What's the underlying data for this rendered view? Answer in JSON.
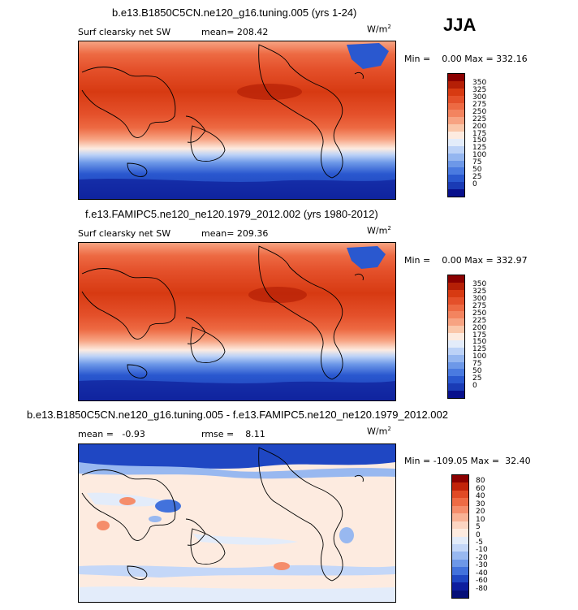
{
  "season": "JJA",
  "units": "W/m",
  "units_exp": "2",
  "panels": [
    {
      "title": "b.e13.B1850C5CN.ne120_g16.tuning.005 (yrs 1-24)",
      "variable": "Surf clearsky net SW",
      "mean_label": "mean= 208.42",
      "minmax_label": "Min =    0.00 Max = 332.16",
      "colorbar": {
        "labels": [
          "350",
          "325",
          "300",
          "275",
          "250",
          "225",
          "200",
          "175",
          "150",
          "125",
          "100",
          "75",
          "50",
          "25",
          "0"
        ],
        "colors": [
          "#8b0000",
          "#b51f06",
          "#d73a12",
          "#e4502a",
          "#ed6a43",
          "#f3845f",
          "#f7a382",
          "#fac7aa",
          "#fdebe0",
          "#e3ecfa",
          "#bcd2f7",
          "#94b6f0",
          "#6d98e8",
          "#4a7ae0",
          "#2a58cf",
          "#1a3bb5",
          "#08108c"
        ]
      }
    },
    {
      "title": "f.e13.FAMIPC5.ne120_ne120.1979_2012.002 (yrs 1980-2012)",
      "variable": "Surf clearsky net SW",
      "mean_label": "mean= 209.36",
      "minmax_label": "Min =    0.00 Max = 332.97",
      "colorbar": {
        "labels": [
          "350",
          "325",
          "300",
          "275",
          "250",
          "225",
          "200",
          "175",
          "150",
          "125",
          "100",
          "75",
          "50",
          "25",
          "0"
        ],
        "colors": [
          "#8b0000",
          "#b51f06",
          "#d73a12",
          "#e4502a",
          "#ed6a43",
          "#f3845f",
          "#f7a382",
          "#fac7aa",
          "#fdebe0",
          "#e3ecfa",
          "#bcd2f7",
          "#94b6f0",
          "#6d98e8",
          "#4a7ae0",
          "#2a58cf",
          "#1a3bb5",
          "#08108c"
        ]
      }
    },
    {
      "title": "b.e13.B1850C5CN.ne120_g16.tuning.005 - f.e13.FAMIPC5.ne120_ne120.1979_2012.002",
      "mean_label": "mean =   -0.93",
      "rmse_label": "rmse =    8.11",
      "minmax_label": "Min = -109.05 Max =  32.40",
      "colorbar": {
        "labels": [
          "80",
          "60",
          "40",
          "30",
          "20",
          "10",
          "5",
          "0",
          "-5",
          "-10",
          "-20",
          "-30",
          "-40",
          "-60",
          "-80"
        ],
        "colors": [
          "#8b0000",
          "#c1230a",
          "#e04a26",
          "#ee6b45",
          "#f58d6b",
          "#f9b295",
          "#fcd5c2",
          "#fdebe0",
          "#e3ecfa",
          "#c4d7f8",
          "#98b8f0",
          "#6d98e8",
          "#4272dc",
          "#1f47c3",
          "#0d1e9e",
          "#060f78"
        ]
      }
    }
  ]
}
